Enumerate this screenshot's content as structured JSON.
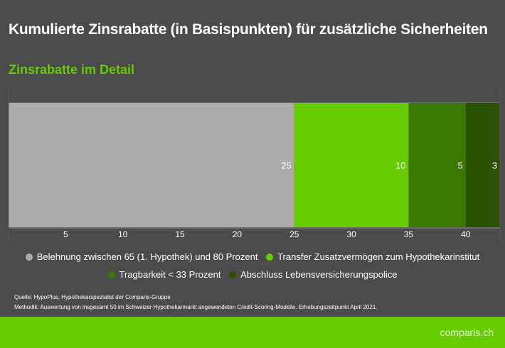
{
  "title": "Kumulierte Zinsrabatte (in Basispunkten) für zusätzliche Sicherheiten",
  "subtitle": "Zinsrabatte im Detail",
  "chart_data": {
    "type": "bar",
    "orientation": "horizontal-stacked",
    "series": [
      {
        "name": "Belehnung zwischen 65 (1. Hypothek) und 80 Prozent",
        "values": [
          25
        ],
        "color": "#acacac",
        "label": "25"
      },
      {
        "name": "Transfer Zusatzvermögen zum Hypothekarinstitut",
        "values": [
          10
        ],
        "color": "#66cc00",
        "label": "10"
      },
      {
        "name": "Tragbarkeit < 33 Prozent",
        "values": [
          5
        ],
        "color": "#3a7800",
        "label": "5"
      },
      {
        "name": "Abschluss Lebensversicherungspolice",
        "values": [
          3
        ],
        "color": "#2a5200",
        "label": "3"
      }
    ],
    "xlim": [
      0,
      43
    ],
    "xticks": [
      "5",
      "10",
      "15",
      "20",
      "25",
      "30",
      "35",
      "40"
    ],
    "grid": false,
    "legend": "bottom"
  },
  "notes": {
    "source": "Quelle: HypoPlus, Hypothekarspezialist der Comparis-Gruppe",
    "method": "Methodik: Auswertung von insgesamt 50 im Schweizer Hypothekarmarkt angewendeten Credit-Scoring-Modelle. Erhebungszeitpunkt April 2021."
  },
  "logo": "comparis.ch"
}
